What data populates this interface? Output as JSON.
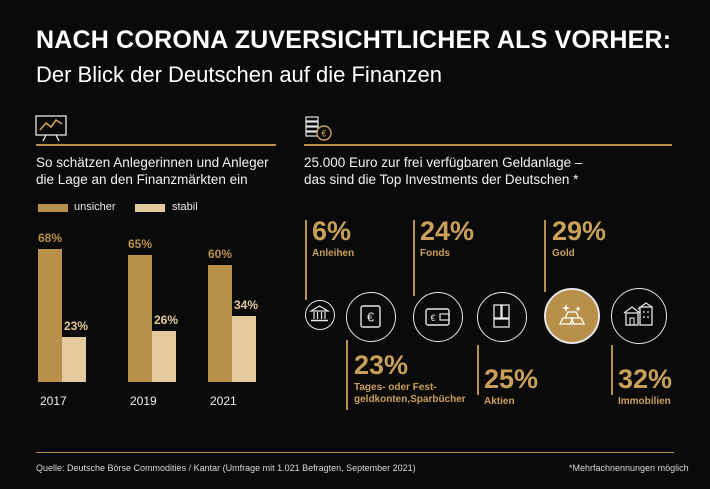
{
  "header": {
    "headline": "NACH CORONA ZUVERSICHTLICHER ALS VORHER:",
    "subline": "Der Blick der Deutschen auf die Finanzen"
  },
  "left": {
    "icon": "trend-chart-icon",
    "title_line1": "So schätzen Anlegerinnen und Anleger",
    "title_line2": "die Lage an den Finanzmärkten ein"
  },
  "right": {
    "icon": "euro-coins-icon",
    "title_line1": "25.000 Euro zur frei verfügbaren Geldanlage –",
    "title_line2": "das sind die Top Investments der Deutschen *"
  },
  "colors": {
    "gold": "#b8904a",
    "light": "#e3c99c",
    "background": "#0a0a0a"
  },
  "chart_data": [
    {
      "type": "bar",
      "categories": [
        "2017",
        "2019",
        "2021"
      ],
      "series": [
        {
          "name": "unsicher",
          "values": [
            68,
            65,
            60
          ],
          "labels": [
            "68%",
            "65%",
            "60%"
          ],
          "color": "#b8904a"
        },
        {
          "name": "stabil",
          "values": [
            23,
            26,
            34
          ],
          "labels": [
            "23%",
            "26%",
            "34%"
          ],
          "color": "#e3c99c"
        }
      ],
      "ylim": [
        0,
        70
      ],
      "legend": "top-left"
    },
    {
      "type": "bar",
      "categories": [
        "Anleihen",
        "Tages- oder Festgeldkonten, Sparbücher",
        "Fonds",
        "Aktien",
        "Gold",
        "Immobilien"
      ],
      "values": [
        6,
        23,
        24,
        25,
        29,
        32
      ],
      "items": [
        {
          "pct": "6%",
          "label_lines": [
            "Anleihen"
          ],
          "icon": "bank-building-icon",
          "highlight": false
        },
        {
          "pct": "23%",
          "label_lines": [
            "Tages- oder Fest-",
            "geldkonten,Sparbücher"
          ],
          "icon": "euro-safe-icon",
          "highlight": false
        },
        {
          "pct": "24%",
          "label_lines": [
            "Fonds"
          ],
          "icon": "wallet-icon",
          "highlight": false
        },
        {
          "pct": "25%",
          "label_lines": [
            "Aktien"
          ],
          "icon": "stock-certificate-icon",
          "highlight": false
        },
        {
          "pct": "29%",
          "label_lines": [
            "Gold"
          ],
          "icon": "gold-bars-icon",
          "highlight": true
        },
        {
          "pct": "32%",
          "label_lines": [
            "Immobilien"
          ],
          "icon": "houses-icon",
          "highlight": false
        }
      ]
    }
  ],
  "footer": {
    "source": "Quelle: Deutsche Börse Commodities / Kantar (Umfrage mit 1.021 Befragten, September 2021)",
    "note": "*Mehrfachnennungen möglich"
  }
}
